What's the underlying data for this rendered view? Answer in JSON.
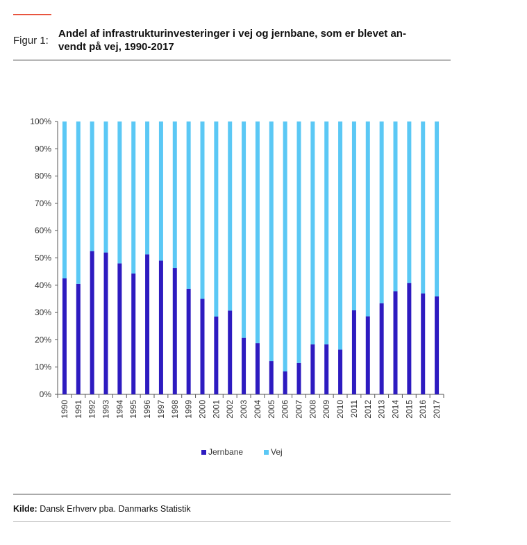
{
  "header": {
    "figure_label": "Figur 1:",
    "title": "Andel af infrastrukturinvesteringer i vej og jernbane, som er blevet an-vendt på vej, 1990-2017"
  },
  "source": {
    "label": "Kilde:",
    "text": " Dansk Erhverv pba. Danmarks Statistik"
  },
  "colors": {
    "jernbane": "#2d1bc0",
    "vej": "#5bc8f5",
    "accent": "#e8553f"
  },
  "chart_data": {
    "type": "bar",
    "stacked": true,
    "title": "Andel af infrastrukturinvesteringer i vej og jernbane, som er blevet an-vendt på vej, 1990-2017",
    "xlabel": "",
    "ylabel": "",
    "ylim": [
      0,
      100
    ],
    "yticks": [
      "0%",
      "10%",
      "20%",
      "30%",
      "40%",
      "50%",
      "60%",
      "70%",
      "80%",
      "90%",
      "100%"
    ],
    "categories": [
      "1990",
      "1991",
      "1992",
      "1993",
      "1994",
      "1995",
      "1996",
      "1997",
      "1998",
      "1999",
      "2000",
      "2001",
      "2002",
      "2003",
      "2004",
      "2005",
      "2006",
      "2007",
      "2008",
      "2009",
      "2010",
      "2011",
      "2012",
      "2013",
      "2014",
      "2015",
      "2016",
      "2017"
    ],
    "series": [
      {
        "name": "Jernbane",
        "values": [
          42.5,
          40.5,
          52.5,
          52,
          48,
          44.3,
          51.3,
          49,
          46.3,
          38.7,
          35,
          28.5,
          30.7,
          20.7,
          18.8,
          12.2,
          8.4,
          11.5,
          18.3,
          18.3,
          16.4,
          30.8,
          28.6,
          33.4,
          37.8,
          40.8,
          37,
          35.9
        ]
      },
      {
        "name": "Vej",
        "values": [
          57.5,
          59.5,
          47.5,
          48,
          52,
          55.7,
          48.7,
          51,
          53.7,
          61.3,
          65,
          71.5,
          69.3,
          79.3,
          81.2,
          87.8,
          91.6,
          88.5,
          81.7,
          81.7,
          83.6,
          69.2,
          71.4,
          66.6,
          62.2,
          59.2,
          63,
          64.1
        ]
      }
    ],
    "legend": [
      "Jernbane",
      "Vej"
    ],
    "legend_position": "bottom",
    "grid": false
  }
}
